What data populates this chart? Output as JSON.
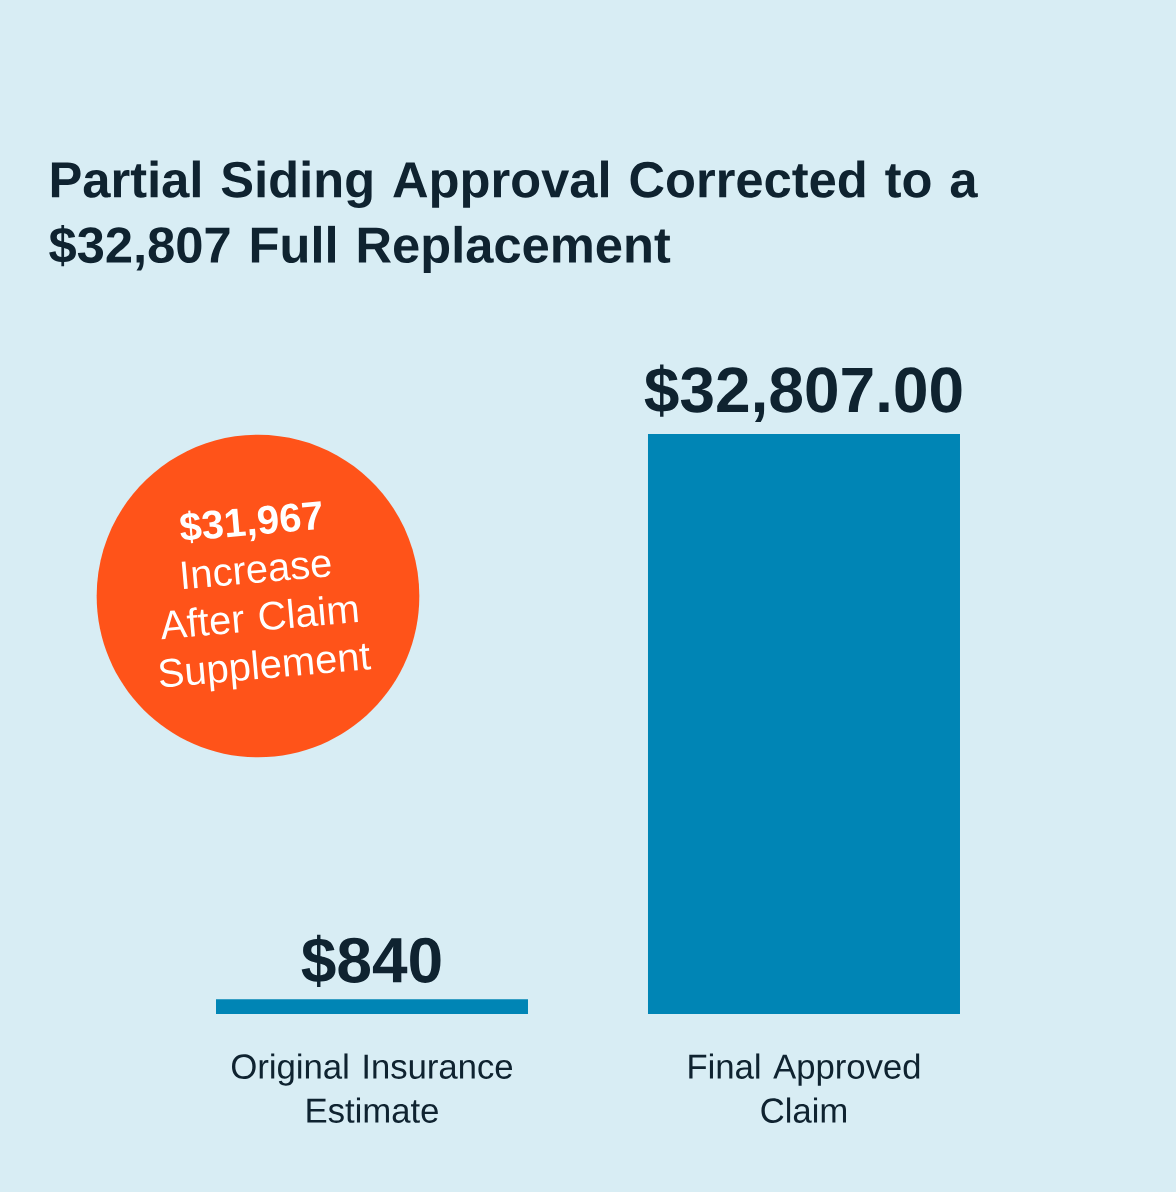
{
  "chart_data": {
    "type": "bar",
    "title": "Partial Siding Approval Corrected to a $32,807 Full Replacement",
    "categories": [
      "Original Insurance Estimate",
      "Final Approved Claim"
    ],
    "values": [
      840,
      32807
    ],
    "color": "#0085b5",
    "value_labels": [
      "$840",
      "$32,807.00"
    ],
    "tick_labels": "x",
    "annotations": [
      "**$31,967** Increase After Claim Supplement"
    ]
  }
}
